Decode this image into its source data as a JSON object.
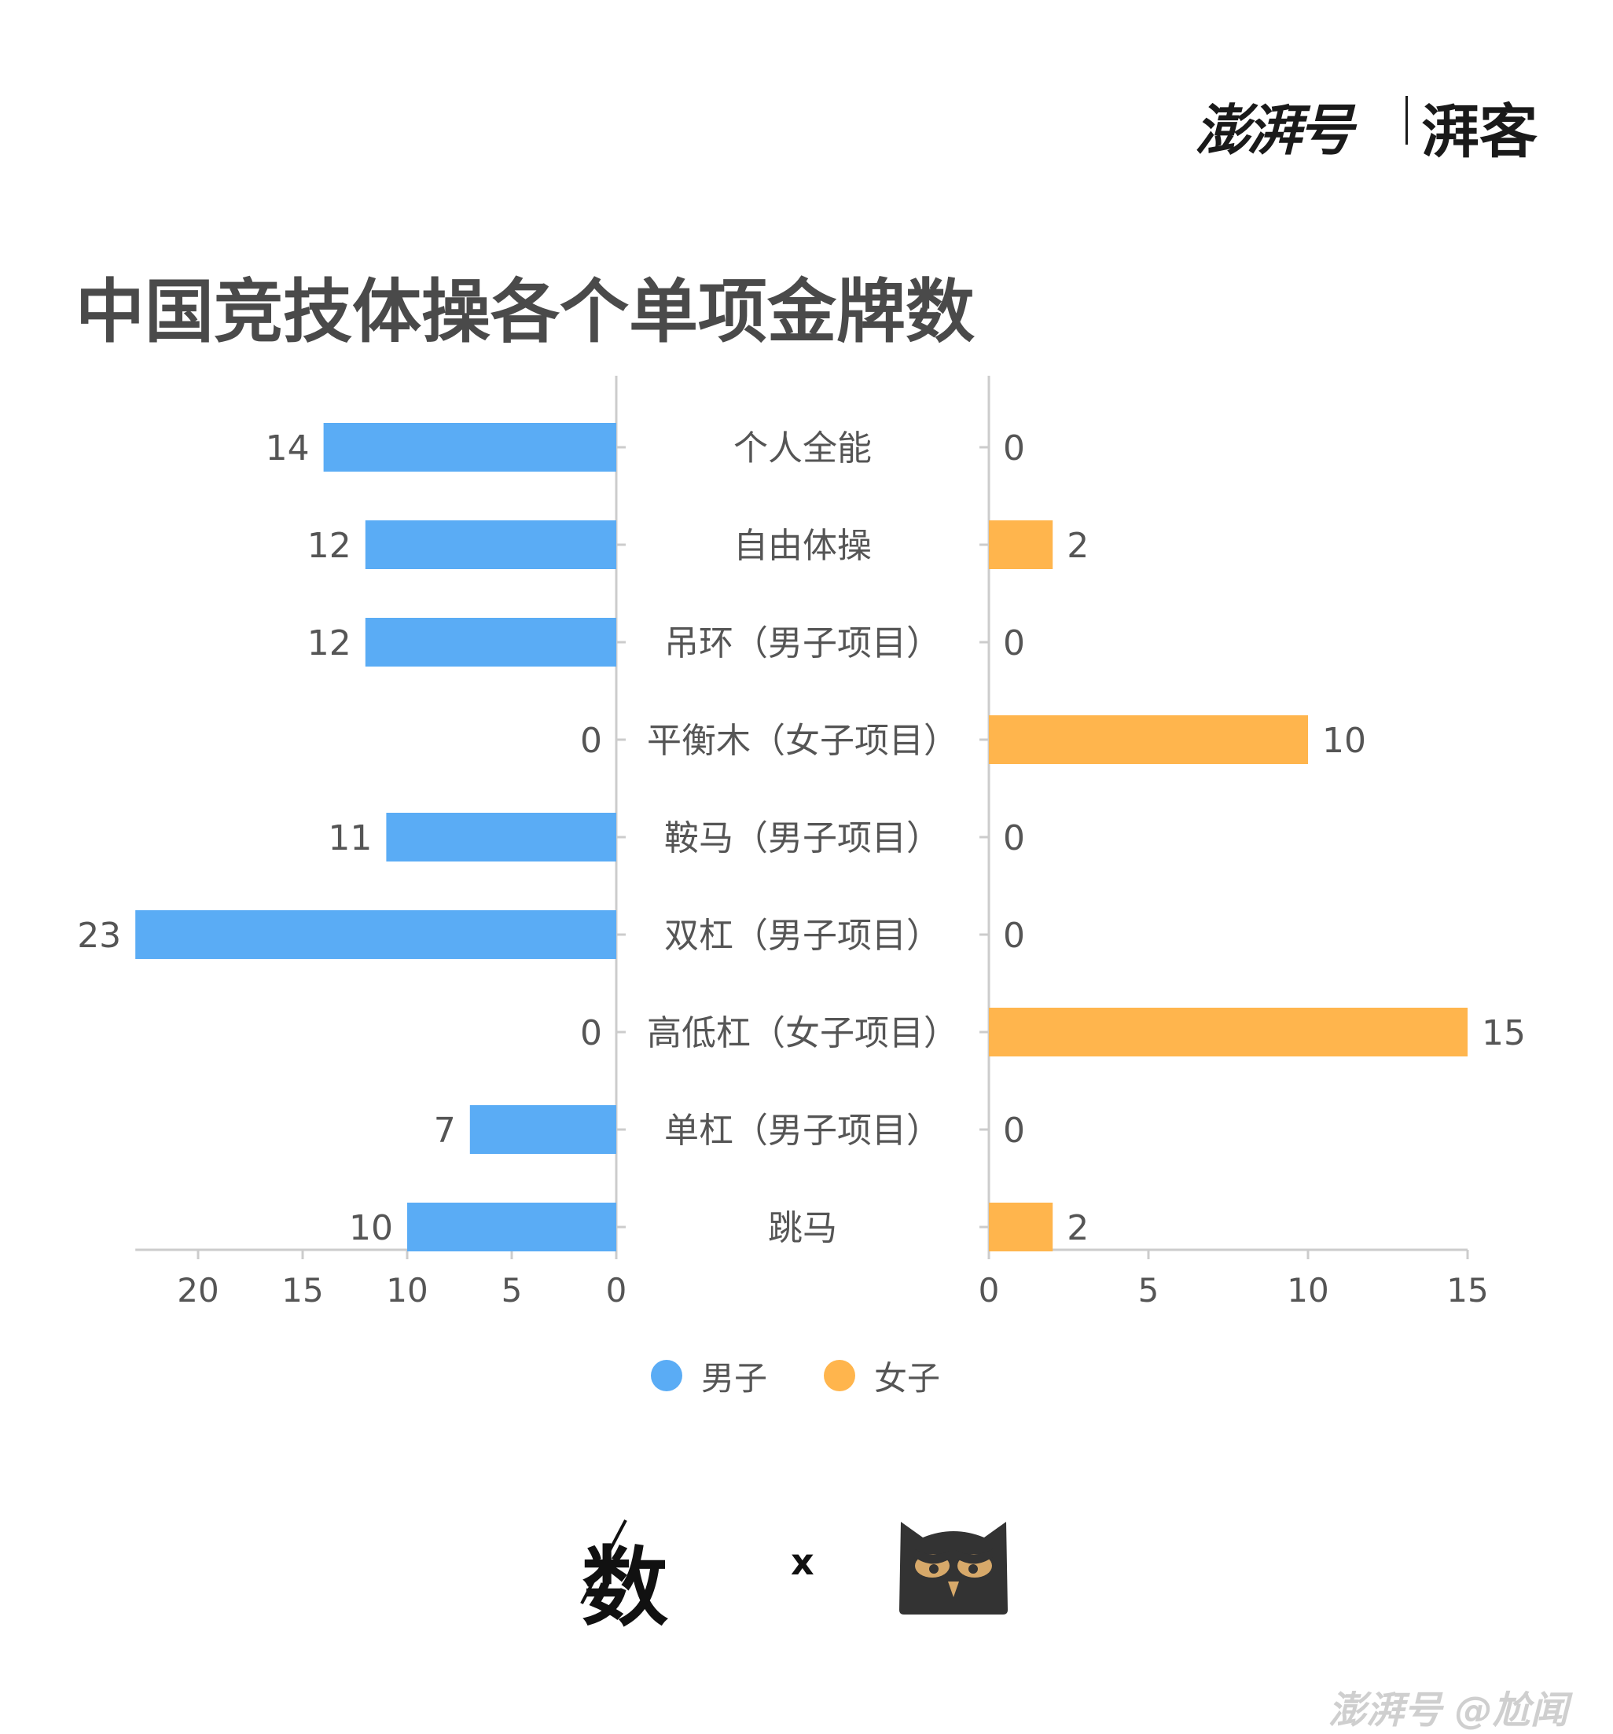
{
  "header": {
    "brand": "澎湃号",
    "partner": "湃客"
  },
  "chart_data": {
    "type": "bar",
    "title": "中国竞技体操各个单项金牌数",
    "categories": [
      "个人全能",
      "自由体操",
      "吊环（男子项目）",
      "平衡木（女子项目）",
      "鞍马（男子项目）",
      "双杠（男子项目）",
      "高低杠（女子项目）",
      "单杠（男子项目）",
      "跳马"
    ],
    "series": [
      {
        "name": "男子",
        "values": [
          14,
          12,
          12,
          0,
          11,
          23,
          0,
          7,
          10
        ],
        "color": "#5aacf5",
        "side": "left"
      },
      {
        "name": "女子",
        "values": [
          0,
          2,
          0,
          10,
          0,
          0,
          15,
          0,
          2
        ],
        "color": "#ffb54d",
        "side": "right"
      }
    ],
    "left_axis": {
      "ticks": [
        20,
        15,
        10,
        5,
        0
      ],
      "xlim": [
        0,
        23
      ]
    },
    "right_axis": {
      "ticks": [
        0,
        5,
        10,
        15
      ],
      "xlim": [
        0,
        15
      ]
    },
    "legend_position": "bottom-center"
  },
  "footer": {
    "logo_text": "数",
    "separator": "x",
    "owl_icon": "owl-icon"
  },
  "watermark": "澎湃号 @尬闻"
}
